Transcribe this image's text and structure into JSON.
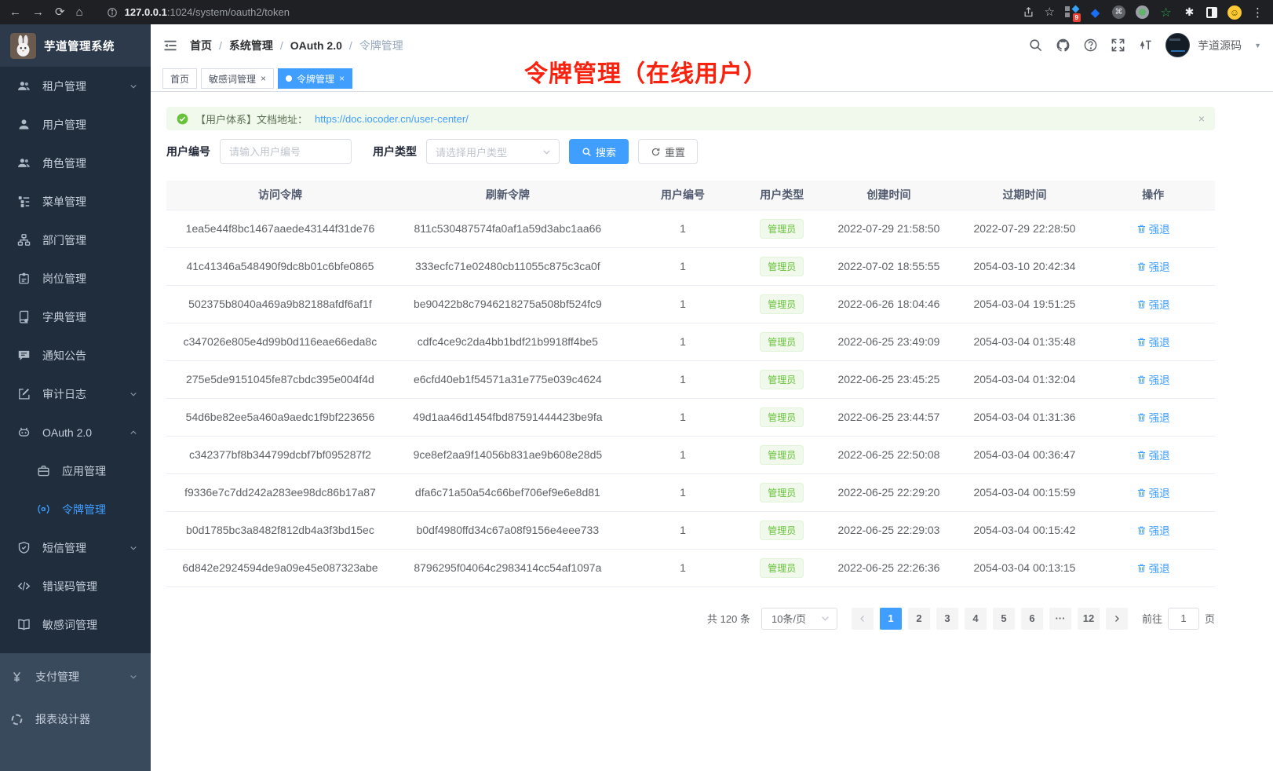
{
  "colors": {
    "accent": "#409eff",
    "success": "#67c23a",
    "annotation_red": "#f8220f",
    "sidebar_bg": "#1f2d3d"
  },
  "browser": {
    "url_host": "127.0.0.1",
    "url_rest": ":1024/system/oauth2/token",
    "ext_badge": "9"
  },
  "sidebar": {
    "title": "芋道管理系统",
    "items": [
      {
        "key": "tenant",
        "label": "租户管理",
        "icon": "users",
        "arrow": "down"
      },
      {
        "key": "user",
        "label": "用户管理",
        "icon": "user"
      },
      {
        "key": "role",
        "label": "角色管理",
        "icon": "users"
      },
      {
        "key": "menu",
        "label": "菜单管理",
        "icon": "menu-tree"
      },
      {
        "key": "dept",
        "label": "部门管理",
        "icon": "org"
      },
      {
        "key": "post",
        "label": "岗位管理",
        "icon": "badge"
      },
      {
        "key": "dict",
        "label": "字典管理",
        "icon": "dict"
      },
      {
        "key": "notice",
        "label": "通知公告",
        "icon": "comment"
      },
      {
        "key": "audit",
        "label": "审计日志",
        "icon": "edit",
        "arrow": "down"
      },
      {
        "key": "oauth2",
        "label": "OAuth 2.0",
        "icon": "robot",
        "arrow": "up",
        "children": [
          {
            "key": "oauth2-app",
            "label": "应用管理",
            "icon": "briefcase"
          },
          {
            "key": "oauth2-token",
            "label": "令牌管理",
            "icon": "token",
            "active": true
          }
        ]
      },
      {
        "key": "sms",
        "label": "短信管理",
        "icon": "shield",
        "arrow": "down"
      },
      {
        "key": "errcode",
        "label": "错误码管理",
        "icon": "code"
      },
      {
        "key": "sensitive",
        "label": "敏感词管理",
        "icon": "open-book"
      }
    ],
    "bottom_items": [
      {
        "key": "pay",
        "label": "支付管理",
        "icon": "yen",
        "arrow": "down"
      },
      {
        "key": "report",
        "label": "报表设计器",
        "icon": "report"
      }
    ]
  },
  "header": {
    "breadcrumb": [
      "首页",
      "系统管理",
      "OAuth 2.0",
      "令牌管理"
    ],
    "user_name": "芋道源码"
  },
  "tabs": [
    {
      "label": "首页",
      "closable": false,
      "active": false
    },
    {
      "label": "敏感词管理",
      "closable": true,
      "active": false
    },
    {
      "label": "令牌管理",
      "closable": true,
      "active": true
    }
  ],
  "annotation": {
    "text": "令牌管理（在线用户）"
  },
  "alert": {
    "text": "【用户体系】文档地址：",
    "link": "https://doc.iocoder.cn/user-center/",
    "close": "×"
  },
  "filters": {
    "user_id_label": "用户编号",
    "user_id_placeholder": "请输入用户编号",
    "user_type_label": "用户类型",
    "user_type_placeholder": "请选择用户类型",
    "search_label": "搜索",
    "reset_label": "重置"
  },
  "table": {
    "columns": [
      "访问令牌",
      "刷新令牌",
      "用户编号",
      "用户类型",
      "创建时间",
      "过期时间",
      "操作"
    ],
    "action_label": "强退",
    "rows": [
      {
        "access": "1ea5e44f8bc1467aaede43144f31de76",
        "refresh": "811c530487574fa0af1a59d3abc1aa66",
        "user_id": "1",
        "user_type": "管理员",
        "created": "2022-07-29 21:58:50",
        "expires": "2022-07-29 22:28:50"
      },
      {
        "access": "41c41346a548490f9dc8b01c6bfe0865",
        "refresh": "333ecfc71e02480cb11055c875c3ca0f",
        "user_id": "1",
        "user_type": "管理员",
        "created": "2022-07-02 18:55:55",
        "expires": "2054-03-10 20:42:34"
      },
      {
        "access": "502375b8040a469a9b82188afdf6af1f",
        "refresh": "be90422b8c7946218275a508bf524fc9",
        "user_id": "1",
        "user_type": "管理员",
        "created": "2022-06-26 18:04:46",
        "expires": "2054-03-04 19:51:25"
      },
      {
        "access": "c347026e805e4d99b0d116eae66eda8c",
        "refresh": "cdfc4ce9c2da4bb1bdf21b9918ff4be5",
        "user_id": "1",
        "user_type": "管理员",
        "created": "2022-06-25 23:49:09",
        "expires": "2054-03-04 01:35:48"
      },
      {
        "access": "275e5de9151045fe87cbdc395e004f4d",
        "refresh": "e6cfd40eb1f54571a31e775e039c4624",
        "user_id": "1",
        "user_type": "管理员",
        "created": "2022-06-25 23:45:25",
        "expires": "2054-03-04 01:32:04"
      },
      {
        "access": "54d6be82ee5a460a9aedc1f9bf223656",
        "refresh": "49d1aa46d1454fbd87591444423be9fa",
        "user_id": "1",
        "user_type": "管理员",
        "created": "2022-06-25 23:44:57",
        "expires": "2054-03-04 01:31:36"
      },
      {
        "access": "c342377bf8b344799dcbf7bf095287f2",
        "refresh": "9ce8ef2aa9f14056b831ae9b608e28d5",
        "user_id": "1",
        "user_type": "管理员",
        "created": "2022-06-25 22:50:08",
        "expires": "2054-03-04 00:36:47"
      },
      {
        "access": "f9336e7c7dd242a283ee98dc86b17a87",
        "refresh": "dfa6c71a50a54c66bef706ef9e6e8d81",
        "user_id": "1",
        "user_type": "管理员",
        "created": "2022-06-25 22:29:20",
        "expires": "2054-03-04 00:15:59"
      },
      {
        "access": "b0d1785bc3a8482f812db4a3f3bd15ec",
        "refresh": "b0df4980ffd34c67a08f9156e4eee733",
        "user_id": "1",
        "user_type": "管理员",
        "created": "2022-06-25 22:29:03",
        "expires": "2054-03-04 00:15:42"
      },
      {
        "access": "6d842e2924594de9a09e45e087323abe",
        "refresh": "8796295f04064c2983414cc54af1097a",
        "user_id": "1",
        "user_type": "管理员",
        "created": "2022-06-25 22:26:36",
        "expires": "2054-03-04 00:13:15"
      }
    ]
  },
  "pagination": {
    "total": "共 120 条",
    "per_page": "10条/页",
    "pages": [
      "1",
      "2",
      "3",
      "4",
      "5",
      "6",
      "···",
      "12"
    ],
    "active_page": "1",
    "goto_label": "前往",
    "goto_value": "1",
    "page_unit": "页"
  }
}
